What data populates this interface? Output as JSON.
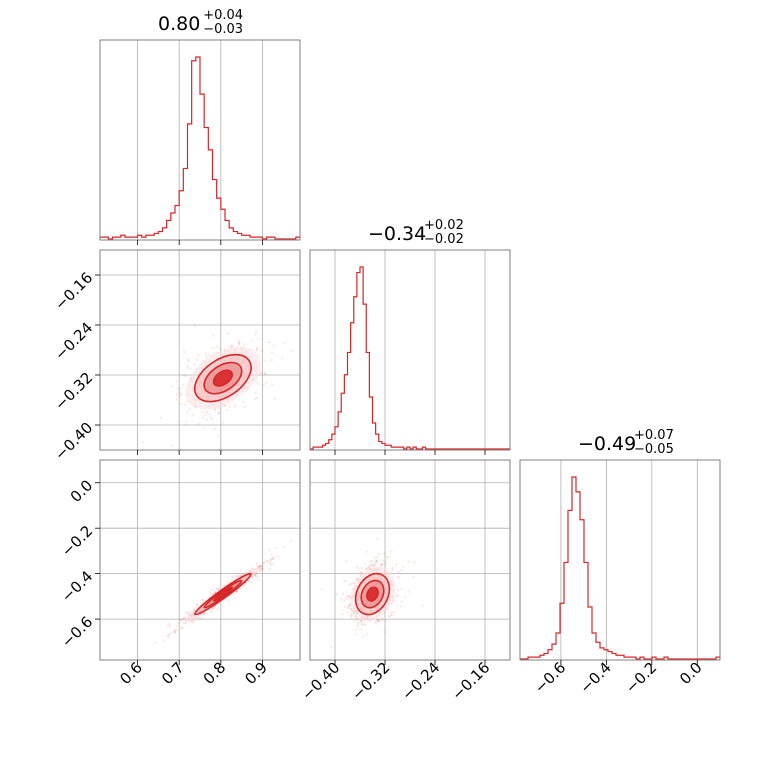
{
  "chart_data": {
    "type": "corner",
    "color": "#d62728",
    "parameters": [
      {
        "range": [
          0.51,
          0.99
        ],
        "ticks": [
          0.6,
          0.7,
          0.8,
          0.9
        ],
        "tick_labels": [
          "0.6",
          "0.7",
          "0.8",
          "0.9"
        ],
        "title_value": "0.80",
        "title_plus": "+0.04",
        "title_minus": "−0.03",
        "hist_bins": {
          "start": 0.51,
          "width": 0.01,
          "counts": [
            1,
            1,
            0,
            1,
            1,
            2,
            1,
            1,
            1,
            2,
            1,
            2,
            2,
            3,
            4,
            6,
            10,
            14,
            18,
            26,
            38,
            62,
            96,
            98,
            78,
            60,
            48,
            32,
            22,
            16,
            10,
            6,
            4,
            3,
            2,
            2,
            1,
            1,
            1,
            0,
            1,
            1,
            0,
            0,
            0,
            0,
            0,
            1
          ]
        }
      },
      {
        "range": [
          -0.44,
          -0.12
        ],
        "ticks": [
          -0.4,
          -0.32,
          -0.24,
          -0.16
        ],
        "tick_labels": [
          "−0.40",
          "−0.32",
          "−0.24",
          "−0.16"
        ],
        "title_value": "−0.34",
        "title_plus": "+0.02",
        "title_minus": "−0.02",
        "hist_bins": {
          "start": -0.44,
          "width": 0.005,
          "counts": [
            0,
            1,
            1,
            1,
            2,
            3,
            5,
            8,
            12,
            20,
            30,
            40,
            52,
            68,
            82,
            95,
            98,
            78,
            52,
            28,
            14,
            8,
            4,
            3,
            2,
            2,
            1,
            1,
            1,
            1,
            0,
            1,
            0,
            1,
            0,
            0,
            1,
            0,
            0,
            0,
            0,
            0,
            0,
            0,
            0,
            0,
            0,
            0,
            0,
            0,
            0,
            0,
            0,
            0,
            0,
            0,
            0,
            0,
            0,
            0,
            0,
            0,
            0,
            0
          ]
        }
      },
      {
        "range": [
          -0.78,
          0.1
        ],
        "ticks": [
          -0.6,
          -0.4,
          -0.2,
          0.0
        ],
        "tick_labels": [
          "−0.6",
          "−0.4",
          "−0.2",
          "0.0"
        ],
        "y_tick_labels": [
          "−0.6",
          "−0.4",
          "−0.2",
          "0.0"
        ],
        "title_value": "−0.49",
        "title_plus": "+0.07",
        "title_minus": "−0.05",
        "hist_bins": {
          "start": -0.78,
          "width": 0.0176,
          "counts": [
            0,
            0,
            1,
            1,
            1,
            2,
            3,
            5,
            8,
            14,
            30,
            52,
            80,
            98,
            90,
            75,
            52,
            28,
            14,
            9,
            6,
            5,
            4,
            3,
            2,
            2,
            1,
            1,
            1,
            0,
            1,
            0,
            0,
            1,
            0,
            0,
            1,
            0,
            0,
            0,
            0,
            0,
            0,
            0,
            0,
            0,
            0,
            0,
            0,
            1
          ]
        }
      }
    ],
    "pairs": [
      {
        "x_param": 0,
        "y_param": 1,
        "center": [
          0.805,
          -0.325
        ],
        "spread": [
          0.045,
          0.025
        ],
        "corr": 0.45
      },
      {
        "x_param": 0,
        "y_param": 2,
        "center": [
          0.805,
          -0.49
        ],
        "spread": [
          0.045,
          0.06
        ],
        "corr": 0.97
      },
      {
        "x_param": 1,
        "y_param": 2,
        "center": [
          -0.34,
          -0.49
        ],
        "spread": [
          0.018,
          0.06
        ],
        "corr": 0.25
      }
    ],
    "contour_levels_sigma": [
      0.5,
      1.0,
      1.5,
      2.0
    ],
    "grid": true
  }
}
